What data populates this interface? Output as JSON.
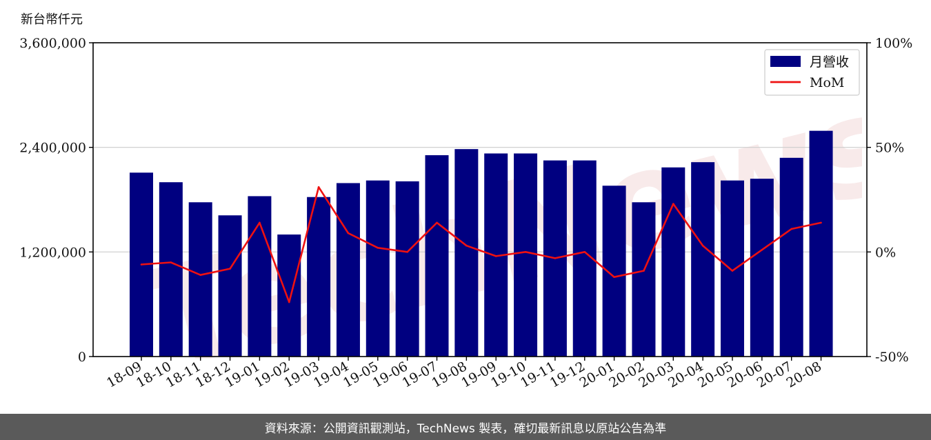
{
  "unit_label": "新台幣仟元",
  "footer": "資料來源：公開資訊觀測站，TechNews 製表，確切最新訊息以原站公告為準",
  "watermark_text": "TechNews",
  "colors": {
    "bar": "#000080",
    "line": "#ee1111",
    "grid": "#cccccc",
    "footer_bg": "#5a5a5a",
    "watermark": "#f3dada"
  },
  "chart_data": {
    "type": "bar",
    "categories": [
      "18-09",
      "18-10",
      "18-11",
      "18-12",
      "19-01",
      "19-02",
      "19-03",
      "19-04",
      "19-05",
      "19-06",
      "19-07",
      "19-08",
      "19-09",
      "19-10",
      "19-11",
      "19-12",
      "20-01",
      "20-02",
      "20-03",
      "20-04",
      "20-05",
      "20-06",
      "20-07",
      "20-08"
    ],
    "series": [
      {
        "name": "月營收",
        "type": "bar",
        "axis": "left",
        "values": [
          2110000,
          2000000,
          1770000,
          1620000,
          1840000,
          1400000,
          1830000,
          1990000,
          2020000,
          2010000,
          2310000,
          2380000,
          2330000,
          2330000,
          2250000,
          2250000,
          1960000,
          1770000,
          2170000,
          2230000,
          2020000,
          2040000,
          2280000,
          2590000
        ]
      },
      {
        "name": "MoM",
        "type": "line",
        "axis": "right",
        "values": [
          -6,
          -5,
          -11,
          -8,
          14,
          -24,
          31,
          9,
          2,
          0,
          14,
          3,
          -2,
          0,
          -3,
          0,
          -12,
          -9,
          23,
          3,
          -9,
          1,
          11,
          14
        ]
      }
    ],
    "y_left": {
      "min": 0,
      "max": 3600000,
      "ticks": [
        0,
        1200000,
        2400000,
        3600000
      ],
      "tick_labels": [
        "0",
        "1,200,000",
        "2,400,000",
        "3,600,000"
      ]
    },
    "y_right": {
      "min": -50,
      "max": 100,
      "ticks": [
        -50,
        0,
        50,
        100
      ],
      "tick_labels": [
        "-50%",
        "0%",
        "50%",
        "100%"
      ]
    },
    "grid": "horizontal",
    "legend_position": "top-right",
    "legend": [
      {
        "label": "月營收",
        "kind": "bar"
      },
      {
        "label": "MoM",
        "kind": "line"
      }
    ]
  }
}
